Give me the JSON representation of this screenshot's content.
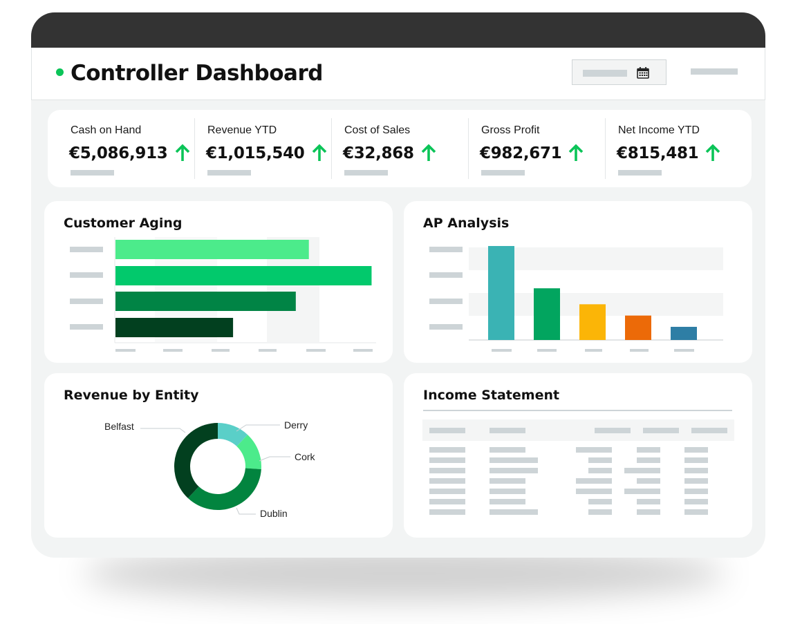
{
  "header": {
    "title": "Controller Dashboard"
  },
  "kpis": [
    {
      "label": "Cash on Hand",
      "value": "€5,086,913",
      "trend": "up"
    },
    {
      "label": "Revenue YTD",
      "value": "€1,015,540",
      "trend": "up"
    },
    {
      "label": "Cost of Sales",
      "value": "€32,868",
      "trend": "up"
    },
    {
      "label": "Gross Profit",
      "value": "€982,671",
      "trend": "up"
    },
    {
      "label": "Net Income YTD",
      "value": "€815,481",
      "trend": "up"
    }
  ],
  "colors": {
    "accent_green": "#0bc458",
    "titlebar": "#333333",
    "background": "#f2f4f4",
    "placeholder": "#cdd4d7"
  },
  "customer_aging": {
    "title": "Customer Aging",
    "chart_data": {
      "type": "bar",
      "orientation": "horizontal",
      "series": [
        {
          "values": [
            0.74,
            0.98,
            0.69,
            0.45
          ]
        }
      ],
      "bar_colors": [
        "#4ceb8b",
        "#02c96c",
        "#018445",
        "#02401f"
      ],
      "xlim": [
        0,
        1
      ],
      "grid": true
    }
  },
  "ap_analysis": {
    "title": "AP Analysis",
    "chart_data": {
      "type": "bar",
      "orientation": "vertical",
      "series": [
        {
          "values": [
            1.0,
            0.55,
            0.38,
            0.26,
            0.14
          ]
        }
      ],
      "bar_colors": [
        "#3ab3b4",
        "#02a55f",
        "#fbb507",
        "#ec6a08",
        "#2e7ea5"
      ],
      "ylim": [
        0,
        1
      ],
      "grid": true
    }
  },
  "revenue_by_entity": {
    "title": "Revenue by Entity",
    "chart_data": {
      "type": "pie",
      "donut": true,
      "categories": [
        "Derry",
        "Cork",
        "Dublin",
        "Belfast"
      ],
      "values": [
        0.12,
        0.14,
        0.36,
        0.38
      ],
      "colors": [
        "#5acfc8",
        "#4ceb8b",
        "#02843f",
        "#02401f"
      ]
    }
  },
  "income_statement": {
    "title": "Income Statement"
  }
}
